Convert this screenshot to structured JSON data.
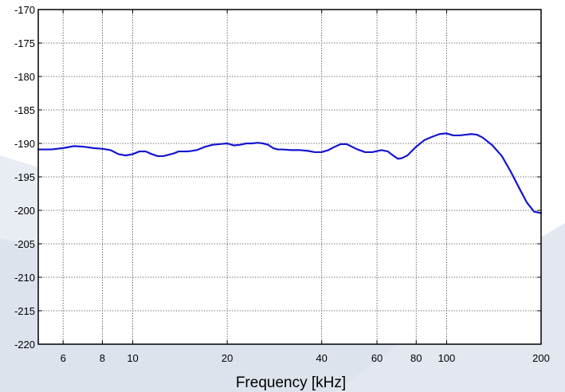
{
  "chart_data": {
    "type": "line",
    "title": "",
    "xlabel": "Frequency [kHz]",
    "ylabel": "",
    "xscale": "log",
    "xlim": [
      5,
      200
    ],
    "ylim": [
      -220,
      -170
    ],
    "grid": true,
    "legend": "none",
    "x_ticks": [
      6,
      8,
      10,
      20,
      40,
      60,
      80,
      100,
      200
    ],
    "y_ticks": [
      -220,
      -215,
      -210,
      -205,
      -200,
      -195,
      -190,
      -185,
      -180,
      -175,
      -170
    ],
    "series": [
      {
        "color": "#1515d0",
        "x": [
          5.0,
          5.5,
          6.0,
          6.5,
          7.0,
          7.5,
          8.0,
          8.5,
          9.0,
          9.5,
          10.0,
          10.5,
          11.0,
          11.5,
          12.0,
          12.5,
          13.0,
          13.5,
          14.0,
          15.0,
          16.0,
          17.0,
          18.0,
          19.0,
          20.0,
          21.0,
          22.0,
          23.0,
          24.0,
          25.0,
          26.0,
          27.0,
          28.0,
          29.0,
          30.0,
          32.0,
          34.0,
          36.0,
          38.0,
          40.0,
          42.0,
          44.0,
          46.0,
          48.0,
          50.0,
          52.0,
          55.0,
          58.0,
          62.0,
          65.0,
          68.0,
          70.0,
          72.0,
          75.0,
          78.0,
          80.0,
          85.0,
          90.0,
          95.0,
          100.0,
          105.0,
          110.0,
          115.0,
          120.0,
          125.0,
          130.0,
          135.0,
          140.0,
          150.0,
          160.0,
          170.0,
          180.0,
          190.0,
          200.0
        ],
        "y": [
          -190.9,
          -190.9,
          -190.7,
          -190.4,
          -190.5,
          -190.7,
          -190.8,
          -191.0,
          -191.6,
          -191.8,
          -191.6,
          -191.2,
          -191.2,
          -191.6,
          -191.9,
          -191.9,
          -191.7,
          -191.5,
          -191.2,
          -191.2,
          -191.0,
          -190.5,
          -190.2,
          -190.1,
          -190.0,
          -190.3,
          -190.2,
          -190.0,
          -190.0,
          -189.9,
          -190.0,
          -190.2,
          -190.7,
          -190.9,
          -190.9,
          -191.0,
          -191.0,
          -191.1,
          -191.3,
          -191.3,
          -191.0,
          -190.5,
          -190.1,
          -190.1,
          -190.5,
          -190.9,
          -191.3,
          -191.3,
          -191.0,
          -191.2,
          -191.9,
          -192.3,
          -192.2,
          -191.8,
          -191.0,
          -190.5,
          -189.5,
          -189.0,
          -188.6,
          -188.5,
          -188.8,
          -188.8,
          -188.7,
          -188.6,
          -188.7,
          -189.1,
          -189.7,
          -190.3,
          -191.9,
          -194.2,
          -196.6,
          -198.8,
          -200.2,
          -200.4
        ]
      }
    ]
  }
}
